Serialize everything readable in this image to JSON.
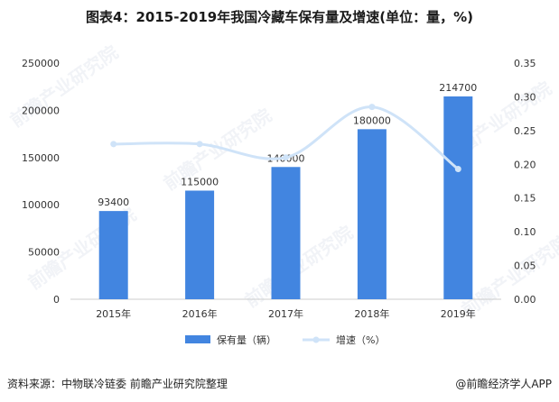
{
  "title": "图表4：2015-2019年我国冷藏车保有量及增速(单位：量，%)",
  "source": "资料来源：中物联冷链委 前瞻产业研究院整理",
  "brand": "@前瞻经济学人APP",
  "watermark": "前瞻产业研究院",
  "colors": {
    "bar": "#4285e0",
    "line": "#cfe3f8",
    "axis": "#cccccc",
    "text": "#333333"
  },
  "chart_data": {
    "type": "bar",
    "categories": [
      "2015年",
      "2016年",
      "2017年",
      "2018年",
      "2019年"
    ],
    "series": [
      {
        "name": "保有量（辆）",
        "type": "bar",
        "axis": "left",
        "values": [
          93400,
          115000,
          140000,
          180000,
          214700
        ]
      },
      {
        "name": "增速（%）",
        "type": "line",
        "axis": "right",
        "values": [
          0.23,
          0.23,
          0.21,
          0.285,
          0.193
        ]
      }
    ],
    "y_left": {
      "min": 0,
      "max": 250000,
      "ticks": [
        0,
        50000,
        100000,
        150000,
        200000,
        250000
      ]
    },
    "y_right": {
      "min": 0,
      "max": 0.35,
      "ticks": [
        "0.00",
        "0.05",
        "0.10",
        "0.15",
        "0.20",
        "0.25",
        "0.30",
        "0.35"
      ]
    },
    "legend": "bottom"
  }
}
